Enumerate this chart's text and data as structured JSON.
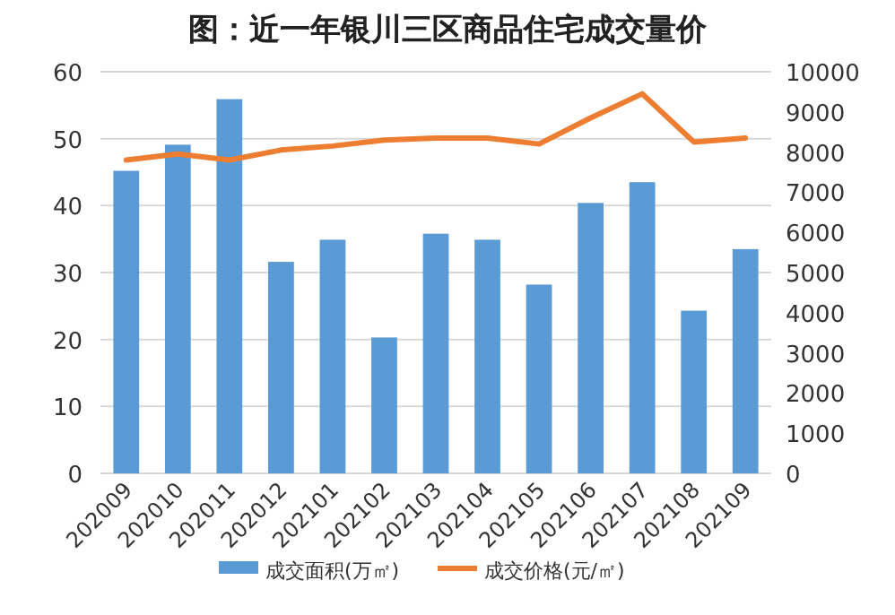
{
  "chart_data": {
    "type": "bar",
    "title": "图：近一年银川三区商品住宅成交量价",
    "categories": [
      "202009",
      "202010",
      "202011",
      "202012",
      "202101",
      "202102",
      "202103",
      "202104",
      "202105",
      "202106",
      "202107",
      "202108",
      "202109"
    ],
    "series": [
      {
        "name": "成交面积(万㎡)",
        "color": "#5b9bd5",
        "values": [
          45.2,
          49.1,
          55.9,
          31.6,
          34.9,
          20.3,
          35.8,
          34.9,
          28.2,
          40.4,
          43.5,
          24.3,
          33.5
        ]
      },
      {
        "name": "成交价格(元/㎡)",
        "type": "line",
        "axis": "y2",
        "color": "#ed7d31",
        "values": [
          7800,
          7950,
          7800,
          8050,
          8150,
          8300,
          8350,
          8350,
          8200,
          8850,
          9450,
          8250,
          8350
        ]
      }
    ],
    "ylim": [
      0,
      60
    ],
    "yticks": [
      0,
      10,
      20,
      30,
      40,
      50,
      60
    ],
    "y2lim": [
      0,
      10000
    ],
    "y2ticks": [
      0,
      1000,
      2000,
      3000,
      4000,
      5000,
      6000,
      7000,
      8000,
      9000,
      10000
    ],
    "grid": "y",
    "legend": "bottom",
    "marker": "none",
    "line_style": "solid"
  }
}
